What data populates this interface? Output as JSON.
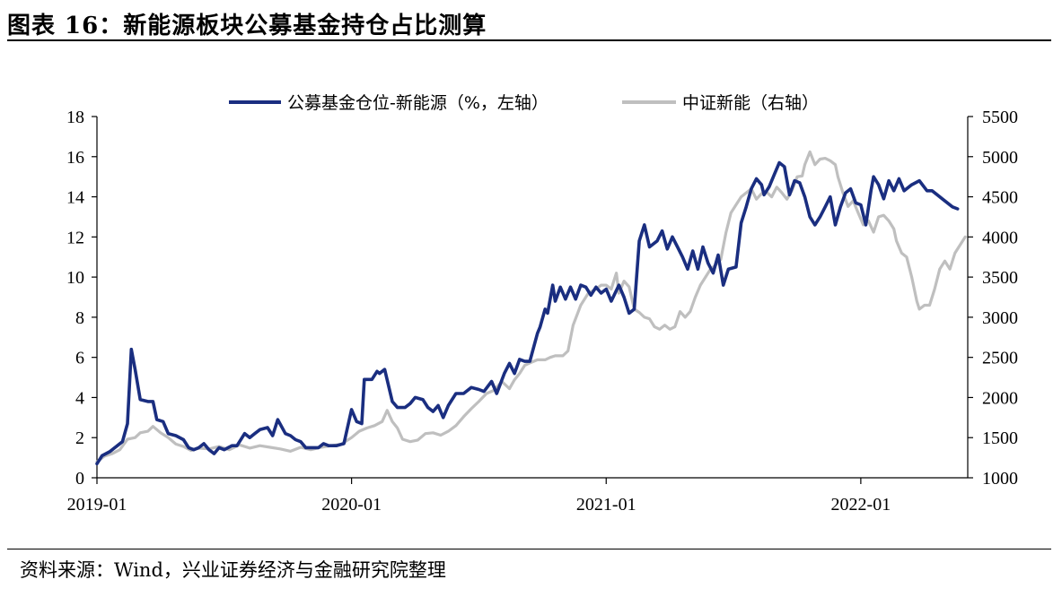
{
  "title": "图表 16：新能源板块公募基金持仓占比测算",
  "source": "资料来源：Wind，兴业证券经济与金融研究院整理",
  "chart_data": {
    "type": "line",
    "x_tick_labels": [
      "2019-01",
      "2020-01",
      "2021-01",
      "2022-01"
    ],
    "y_left": {
      "min": 0,
      "max": 18,
      "ticks": [
        0,
        2,
        4,
        6,
        8,
        10,
        12,
        14,
        16,
        18
      ]
    },
    "y_right": {
      "min": 1000,
      "max": 5500,
      "ticks": [
        1000,
        1500,
        2000,
        2500,
        3000,
        3500,
        4000,
        4500,
        5000,
        5500
      ]
    },
    "x_range": [
      2019.0,
      2022.42
    ],
    "legend_position": "top-center",
    "colors": {
      "left_series": "#1a2e80",
      "right_series": "#bfbfbf"
    },
    "series": [
      {
        "name": "公募基金仓位-新能源（%，左轴）",
        "axis": "left",
        "points": [
          [
            2019.0,
            0.7
          ],
          [
            2019.02,
            1.1
          ],
          [
            2019.05,
            1.3
          ],
          [
            2019.08,
            1.6
          ],
          [
            2019.1,
            1.8
          ],
          [
            2019.12,
            2.7
          ],
          [
            2019.135,
            6.4
          ],
          [
            2019.15,
            5.4
          ],
          [
            2019.17,
            3.9
          ],
          [
            2019.2,
            3.8
          ],
          [
            2019.22,
            3.8
          ],
          [
            2019.235,
            2.9
          ],
          [
            2019.26,
            2.8
          ],
          [
            2019.28,
            2.2
          ],
          [
            2019.31,
            2.1
          ],
          [
            2019.34,
            1.9
          ],
          [
            2019.36,
            1.5
          ],
          [
            2019.38,
            1.4
          ],
          [
            2019.4,
            1.5
          ],
          [
            2019.42,
            1.7
          ],
          [
            2019.44,
            1.4
          ],
          [
            2019.46,
            1.2
          ],
          [
            2019.48,
            1.5
          ],
          [
            2019.5,
            1.4
          ],
          [
            2019.53,
            1.6
          ],
          [
            2019.55,
            1.6
          ],
          [
            2019.58,
            2.2
          ],
          [
            2019.6,
            2.0
          ],
          [
            2019.62,
            2.2
          ],
          [
            2019.64,
            2.4
          ],
          [
            2019.67,
            2.5
          ],
          [
            2019.69,
            2.1
          ],
          [
            2019.71,
            2.9
          ],
          [
            2019.74,
            2.2
          ],
          [
            2019.76,
            2.1
          ],
          [
            2019.78,
            1.9
          ],
          [
            2019.8,
            1.8
          ],
          [
            2019.82,
            1.5
          ],
          [
            2019.85,
            1.5
          ],
          [
            2019.87,
            1.5
          ],
          [
            2019.89,
            1.7
          ],
          [
            2019.91,
            1.6
          ],
          [
            2019.94,
            1.6
          ],
          [
            2019.97,
            1.7
          ],
          [
            2020.0,
            3.4
          ],
          [
            2020.02,
            2.8
          ],
          [
            2020.04,
            2.7
          ],
          [
            2020.05,
            4.9
          ],
          [
            2020.08,
            4.9
          ],
          [
            2020.1,
            5.3
          ],
          [
            2020.11,
            5.2
          ],
          [
            2020.13,
            5.4
          ],
          [
            2020.16,
            3.8
          ],
          [
            2020.18,
            3.5
          ],
          [
            2020.21,
            3.5
          ],
          [
            2020.23,
            3.7
          ],
          [
            2020.25,
            4.0
          ],
          [
            2020.28,
            3.9
          ],
          [
            2020.3,
            3.5
          ],
          [
            2020.32,
            3.3
          ],
          [
            2020.34,
            3.6
          ],
          [
            2020.36,
            3.0
          ],
          [
            2020.38,
            3.6
          ],
          [
            2020.41,
            4.2
          ],
          [
            2020.44,
            4.2
          ],
          [
            2020.47,
            4.5
          ],
          [
            2020.5,
            4.4
          ],
          [
            2020.52,
            4.3
          ],
          [
            2020.55,
            4.8
          ],
          [
            2020.57,
            4.2
          ],
          [
            2020.6,
            5.2
          ],
          [
            2020.62,
            5.7
          ],
          [
            2020.64,
            5.2
          ],
          [
            2020.66,
            5.9
          ],
          [
            2020.68,
            5.8
          ],
          [
            2020.7,
            5.8
          ],
          [
            2020.73,
            7.2
          ],
          [
            2020.74,
            7.5
          ],
          [
            2020.76,
            8.4
          ],
          [
            2020.77,
            8.2
          ],
          [
            2020.79,
            9.6
          ],
          [
            2020.8,
            8.8
          ],
          [
            2020.82,
            9.5
          ],
          [
            2020.84,
            8.9
          ],
          [
            2020.86,
            9.5
          ],
          [
            2020.88,
            8.9
          ],
          [
            2020.9,
            9.6
          ],
          [
            2020.92,
            9.5
          ],
          [
            2020.94,
            9.1
          ],
          [
            2020.96,
            9.5
          ],
          [
            2020.98,
            9.2
          ],
          [
            2021.0,
            9.4
          ],
          [
            2021.02,
            8.8
          ],
          [
            2021.05,
            9.6
          ],
          [
            2021.07,
            9.0
          ],
          [
            2021.09,
            8.2
          ],
          [
            2021.11,
            8.4
          ],
          [
            2021.13,
            11.8
          ],
          [
            2021.15,
            12.6
          ],
          [
            2021.17,
            11.5
          ],
          [
            2021.2,
            11.8
          ],
          [
            2021.22,
            12.3
          ],
          [
            2021.24,
            11.4
          ],
          [
            2021.26,
            12.0
          ],
          [
            2021.28,
            11.5
          ],
          [
            2021.3,
            11.0
          ],
          [
            2021.32,
            10.4
          ],
          [
            2021.34,
            11.3
          ],
          [
            2021.36,
            10.4
          ],
          [
            2021.38,
            11.5
          ],
          [
            2021.4,
            10.7
          ],
          [
            2021.42,
            10.2
          ],
          [
            2021.44,
            11.1
          ],
          [
            2021.46,
            9.6
          ],
          [
            2021.48,
            10.4
          ],
          [
            2021.51,
            10.5
          ],
          [
            2021.53,
            12.7
          ],
          [
            2021.55,
            13.5
          ],
          [
            2021.57,
            14.4
          ],
          [
            2021.59,
            14.9
          ],
          [
            2021.61,
            14.6
          ],
          [
            2021.62,
            14.1
          ],
          [
            2021.64,
            14.5
          ],
          [
            2021.66,
            15.1
          ],
          [
            2021.68,
            15.7
          ],
          [
            2021.7,
            15.5
          ],
          [
            2021.72,
            14.1
          ],
          [
            2021.74,
            14.8
          ],
          [
            2021.76,
            14.7
          ],
          [
            2021.78,
            14.0
          ],
          [
            2021.8,
            13.0
          ],
          [
            2021.82,
            12.6
          ],
          [
            2021.84,
            13.0
          ],
          [
            2021.86,
            13.5
          ],
          [
            2021.88,
            14.0
          ],
          [
            2021.9,
            12.6
          ],
          [
            2021.92,
            13.5
          ],
          [
            2021.94,
            14.2
          ],
          [
            2021.96,
            14.4
          ],
          [
            2021.98,
            13.7
          ],
          [
            2022.0,
            13.6
          ],
          [
            2022.02,
            12.6
          ],
          [
            2022.04,
            14.3
          ],
          [
            2022.05,
            15.0
          ],
          [
            2022.07,
            14.6
          ],
          [
            2022.09,
            13.9
          ],
          [
            2022.11,
            14.8
          ],
          [
            2022.13,
            14.3
          ],
          [
            2022.15,
            14.9
          ],
          [
            2022.17,
            14.3
          ],
          [
            2022.2,
            14.6
          ],
          [
            2022.23,
            14.8
          ],
          [
            2022.26,
            14.3
          ],
          [
            2022.28,
            14.3
          ],
          [
            2022.3,
            14.1
          ],
          [
            2022.32,
            13.9
          ],
          [
            2022.34,
            13.7
          ],
          [
            2022.36,
            13.5
          ],
          [
            2022.38,
            13.4
          ]
        ]
      },
      {
        "name": "中证新能（右轴）",
        "axis": "right",
        "points": [
          [
            2019.0,
            1200
          ],
          [
            2019.03,
            1270
          ],
          [
            2019.06,
            1300
          ],
          [
            2019.09,
            1350
          ],
          [
            2019.12,
            1480
          ],
          [
            2019.15,
            1500
          ],
          [
            2019.17,
            1560
          ],
          [
            2019.2,
            1580
          ],
          [
            2019.22,
            1640
          ],
          [
            2019.25,
            1560
          ],
          [
            2019.28,
            1500
          ],
          [
            2019.31,
            1420
          ],
          [
            2019.34,
            1390
          ],
          [
            2019.37,
            1340
          ],
          [
            2019.4,
            1370
          ],
          [
            2019.44,
            1360
          ],
          [
            2019.48,
            1390
          ],
          [
            2019.52,
            1350
          ],
          [
            2019.56,
            1410
          ],
          [
            2019.6,
            1370
          ],
          [
            2019.64,
            1400
          ],
          [
            2019.68,
            1380
          ],
          [
            2019.72,
            1360
          ],
          [
            2019.76,
            1330
          ],
          [
            2019.8,
            1380
          ],
          [
            2019.84,
            1350
          ],
          [
            2019.88,
            1380
          ],
          [
            2019.92,
            1400
          ],
          [
            2019.96,
            1420
          ],
          [
            2020.0,
            1500
          ],
          [
            2020.03,
            1580
          ],
          [
            2020.06,
            1620
          ],
          [
            2020.09,
            1650
          ],
          [
            2020.12,
            1700
          ],
          [
            2020.14,
            1840
          ],
          [
            2020.16,
            1700
          ],
          [
            2020.18,
            1620
          ],
          [
            2020.2,
            1480
          ],
          [
            2020.23,
            1450
          ],
          [
            2020.26,
            1470
          ],
          [
            2020.29,
            1550
          ],
          [
            2020.32,
            1560
          ],
          [
            2020.35,
            1530
          ],
          [
            2020.38,
            1580
          ],
          [
            2020.41,
            1650
          ],
          [
            2020.44,
            1760
          ],
          [
            2020.47,
            1860
          ],
          [
            2020.5,
            1950
          ],
          [
            2020.53,
            2050
          ],
          [
            2020.56,
            2090
          ],
          [
            2020.59,
            2200
          ],
          [
            2020.62,
            2110
          ],
          [
            2020.64,
            2220
          ],
          [
            2020.66,
            2300
          ],
          [
            2020.68,
            2400
          ],
          [
            2020.7,
            2430
          ],
          [
            2020.73,
            2470
          ],
          [
            2020.76,
            2470
          ],
          [
            2020.78,
            2500
          ],
          [
            2020.8,
            2520
          ],
          [
            2020.83,
            2520
          ],
          [
            2020.85,
            2580
          ],
          [
            2020.87,
            2900
          ],
          [
            2020.9,
            3150
          ],
          [
            2020.93,
            3300
          ],
          [
            2020.96,
            3350
          ],
          [
            2020.98,
            3400
          ],
          [
            2021.0,
            3400
          ],
          [
            2021.02,
            3350
          ],
          [
            2021.04,
            3550
          ],
          [
            2021.05,
            3300
          ],
          [
            2021.07,
            3450
          ],
          [
            2021.09,
            3380
          ],
          [
            2021.11,
            3100
          ],
          [
            2021.13,
            3060
          ],
          [
            2021.15,
            3000
          ],
          [
            2021.17,
            2980
          ],
          [
            2021.19,
            2880
          ],
          [
            2021.21,
            2850
          ],
          [
            2021.23,
            2900
          ],
          [
            2021.25,
            2850
          ],
          [
            2021.27,
            2880
          ],
          [
            2021.29,
            3070
          ],
          [
            2021.31,
            3000
          ],
          [
            2021.33,
            3070
          ],
          [
            2021.35,
            3250
          ],
          [
            2021.37,
            3400
          ],
          [
            2021.39,
            3500
          ],
          [
            2021.41,
            3600
          ],
          [
            2021.43,
            3650
          ],
          [
            2021.45,
            3720
          ],
          [
            2021.47,
            4050
          ],
          [
            2021.49,
            4300
          ],
          [
            2021.51,
            4400
          ],
          [
            2021.53,
            4500
          ],
          [
            2021.55,
            4550
          ],
          [
            2021.57,
            4600
          ],
          [
            2021.59,
            4470
          ],
          [
            2021.61,
            4540
          ],
          [
            2021.63,
            4560
          ],
          [
            2021.65,
            4500
          ],
          [
            2021.67,
            4620
          ],
          [
            2021.69,
            4550
          ],
          [
            2021.71,
            4470
          ],
          [
            2021.73,
            4580
          ],
          [
            2021.75,
            4750
          ],
          [
            2021.77,
            4760
          ],
          [
            2021.78,
            4900
          ],
          [
            2021.8,
            5060
          ],
          [
            2021.82,
            4900
          ],
          [
            2021.84,
            4970
          ],
          [
            2021.86,
            4980
          ],
          [
            2021.88,
            4950
          ],
          [
            2021.9,
            4900
          ],
          [
            2021.91,
            4750
          ],
          [
            2021.93,
            4550
          ],
          [
            2021.95,
            4380
          ],
          [
            2021.97,
            4450
          ],
          [
            2021.99,
            4300
          ],
          [
            2022.01,
            4150
          ],
          [
            2022.03,
            4200
          ],
          [
            2022.05,
            4060
          ],
          [
            2022.07,
            4250
          ],
          [
            2022.09,
            4270
          ],
          [
            2022.11,
            4200
          ],
          [
            2022.13,
            4100
          ],
          [
            2022.14,
            3950
          ],
          [
            2022.16,
            3800
          ],
          [
            2022.18,
            3750
          ],
          [
            2022.2,
            3500
          ],
          [
            2022.22,
            3200
          ],
          [
            2022.23,
            3100
          ],
          [
            2022.25,
            3150
          ],
          [
            2022.27,
            3150
          ],
          [
            2022.29,
            3350
          ],
          [
            2022.31,
            3600
          ],
          [
            2022.33,
            3700
          ],
          [
            2022.35,
            3600
          ],
          [
            2022.37,
            3800
          ],
          [
            2022.39,
            3900
          ],
          [
            2022.41,
            4000
          ]
        ]
      }
    ]
  }
}
